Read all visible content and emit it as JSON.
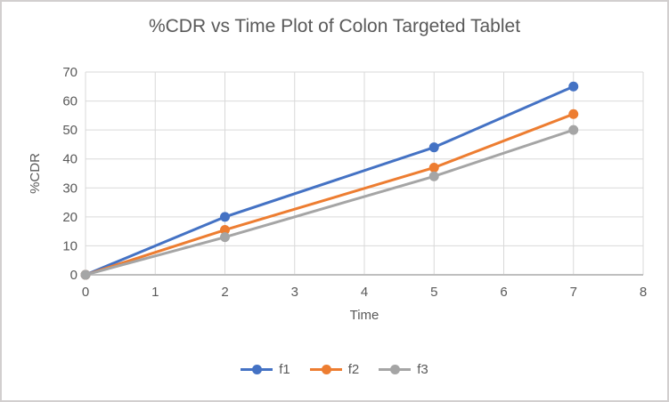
{
  "chart_data": {
    "type": "line",
    "title": "%CDR vs Time Plot of Colon Targeted Tablet",
    "xlabel": "Time",
    "ylabel": "%CDR",
    "x": [
      0,
      2,
      5,
      7
    ],
    "series": [
      {
        "name": "f1",
        "color": "#4472C4",
        "values": [
          0,
          20,
          44,
          65
        ]
      },
      {
        "name": "f2",
        "color": "#ED7D31",
        "values": [
          0,
          15.5,
          37,
          55.5
        ]
      },
      {
        "name": "f3",
        "color": "#A5A5A5",
        "values": [
          0,
          13,
          34,
          50
        ]
      }
    ],
    "xlim": [
      0,
      8
    ],
    "ylim": [
      0,
      70
    ],
    "x_ticks": [
      0,
      1,
      2,
      3,
      4,
      5,
      6,
      7,
      8
    ],
    "y_ticks": [
      0,
      10,
      20,
      30,
      40,
      50,
      60,
      70
    ],
    "grid": true,
    "legend_position": "bottom"
  },
  "styles": {
    "text_color": "#595959",
    "gridline_color": "#D9D9D9",
    "axis_line_color": "#BFBFBF",
    "border_color": "#D2CFCF",
    "background": "#FFFFFF",
    "marker_radius": 5.5,
    "line_width": 3
  }
}
